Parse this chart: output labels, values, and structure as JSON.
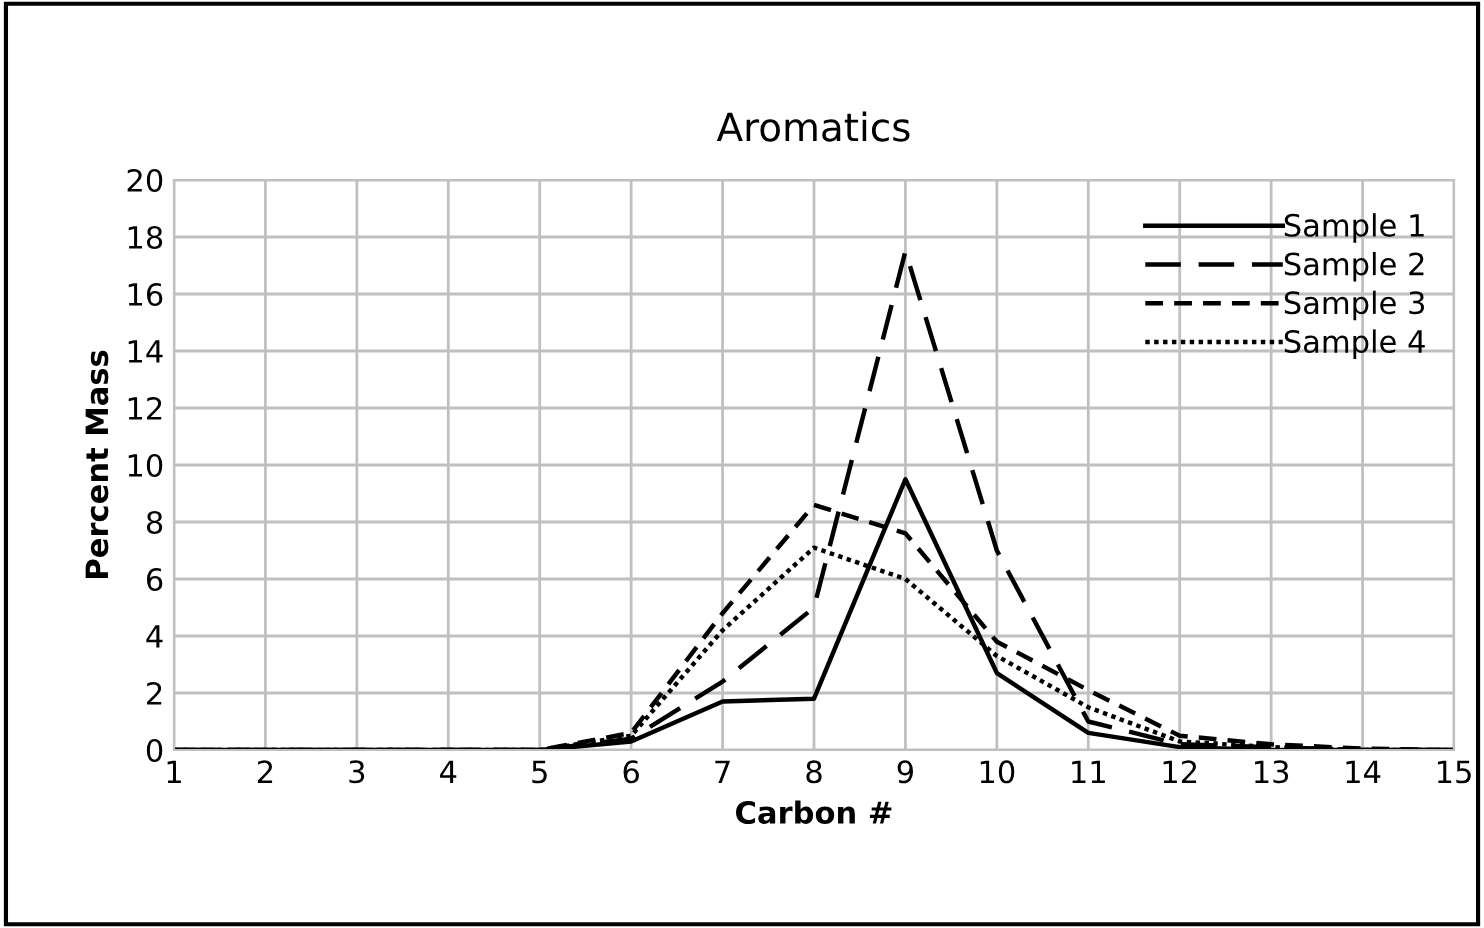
{
  "chart_data": {
    "type": "line",
    "title": "Aromatics",
    "xlabel": "Carbon #",
    "ylabel": "Percent Mass",
    "x": [
      1,
      2,
      3,
      4,
      5,
      6,
      7,
      8,
      9,
      10,
      11,
      12,
      13,
      14,
      15
    ],
    "series": [
      {
        "name": "Sample 1",
        "color": "#000000",
        "line_style": "solid",
        "values": [
          0,
          0,
          0,
          0,
          0,
          0.3,
          1.7,
          1.8,
          9.5,
          2.7,
          0.6,
          0.1,
          0,
          0,
          0
        ]
      },
      {
        "name": "Sample 2",
        "color": "#000000",
        "line_style": "dashed",
        "values": [
          0,
          0,
          0,
          0,
          0,
          0.4,
          2.4,
          5.0,
          17.5,
          7.0,
          1.0,
          0.2,
          0.1,
          0,
          0
        ]
      },
      {
        "name": "Sample 3",
        "color": "#000000",
        "line_style": "dashed",
        "values": [
          0,
          0,
          0,
          0,
          0,
          0.6,
          4.8,
          8.6,
          7.6,
          3.8,
          2.1,
          0.5,
          0.2,
          0.05,
          0
        ]
      },
      {
        "name": "Sample 4",
        "color": "#000000",
        "line_style": "dotted",
        "values": [
          0,
          0,
          0,
          0,
          0,
          0.5,
          4.2,
          7.1,
          6.0,
          3.3,
          1.5,
          0.3,
          0.1,
          0,
          0
        ]
      }
    ],
    "xlim": [
      1,
      15
    ],
    "xticks": [
      1,
      2,
      3,
      4,
      5,
      6,
      7,
      8,
      9,
      10,
      11,
      12,
      13,
      14,
      15
    ],
    "ylim": [
      0,
      20
    ],
    "yticks": [
      0,
      2,
      4,
      6,
      8,
      10,
      12,
      14,
      16,
      18,
      20
    ],
    "grid": true,
    "legend": "top right",
    "marker": "none"
  }
}
